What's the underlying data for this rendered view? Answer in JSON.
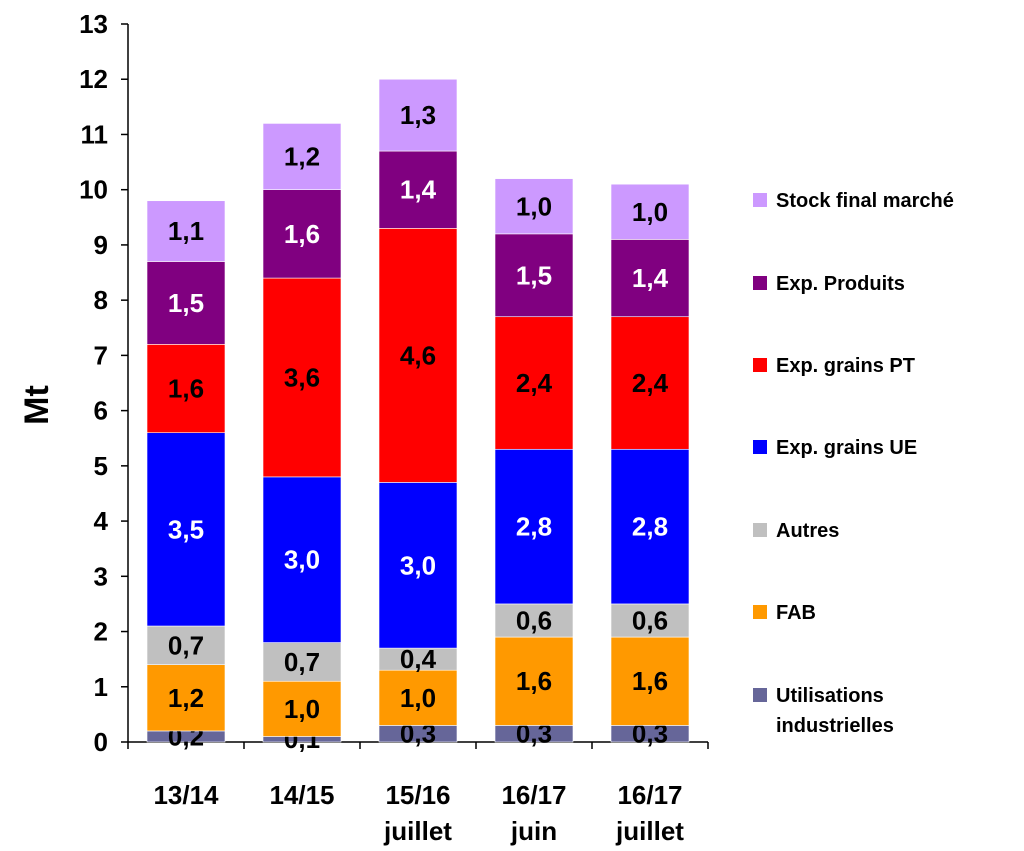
{
  "chart_data": {
    "type": "bar",
    "stacked": true,
    "ylabel": "Mt",
    "xlabel": "",
    "ylim": [
      0,
      13
    ],
    "yticks": [
      "0",
      "1",
      "2",
      "3",
      "4",
      "5",
      "6",
      "7",
      "8",
      "9",
      "10",
      "11",
      "12",
      "13"
    ],
    "grid": false,
    "legend_position": "right",
    "categories": [
      [
        "13/14"
      ],
      [
        "14/15"
      ],
      [
        "15/16",
        "juillet"
      ],
      [
        "16/17",
        "juin"
      ],
      [
        "16/17",
        "juillet"
      ]
    ],
    "series": [
      {
        "name": [
          "Utilisations",
          "industrielles"
        ],
        "color": "#666699",
        "label_color": "#000000",
        "values": [
          0.2,
          0.1,
          0.3,
          0.3,
          0.3
        ],
        "labels": [
          "0,2",
          "0,1",
          "0,3",
          "0,3",
          "0,3"
        ]
      },
      {
        "name": [
          "FAB"
        ],
        "color": "#FF9900",
        "label_color": "#000000",
        "values": [
          1.2,
          1.0,
          1.0,
          1.6,
          1.6
        ],
        "labels": [
          "1,2",
          "1,0",
          "1,0",
          "1,6",
          "1,6"
        ]
      },
      {
        "name": [
          "Autres"
        ],
        "color": "#C0C0C0",
        "label_color": "#000000",
        "values": [
          0.7,
          0.7,
          0.4,
          0.6,
          0.6
        ],
        "labels": [
          "0,7",
          "0,7",
          "0,4",
          "0,6",
          "0,6"
        ]
      },
      {
        "name": [
          "Exp. grains UE"
        ],
        "color": "#0000FF",
        "label_color": "#FFFFFF",
        "values": [
          3.5,
          3.0,
          3.0,
          2.8,
          2.8
        ],
        "labels": [
          "3,5",
          "3,0",
          "3,0",
          "2,8",
          "2,8"
        ]
      },
      {
        "name": [
          "Exp. grains PT"
        ],
        "color": "#FF0000",
        "label_color": "#000000",
        "values": [
          1.6,
          3.6,
          4.6,
          2.4,
          2.4
        ],
        "labels": [
          "1,6",
          "3,6",
          "4,6",
          "2,4",
          "2,4"
        ]
      },
      {
        "name": [
          "Exp. Produits"
        ],
        "color": "#800080",
        "label_color": "#FFFFFF",
        "values": [
          1.5,
          1.6,
          1.4,
          1.5,
          1.4
        ],
        "labels": [
          "1,5",
          "1,6",
          "1,4",
          "1,5",
          "1,4"
        ]
      },
      {
        "name": [
          "Stock final marché"
        ],
        "color": "#CC99FF",
        "label_color": "#000000",
        "values": [
          1.1,
          1.2,
          1.3,
          1.0,
          1.0
        ],
        "labels": [
          "1,1",
          "1,2",
          "1,3",
          "1,0",
          "1,0"
        ]
      }
    ]
  }
}
